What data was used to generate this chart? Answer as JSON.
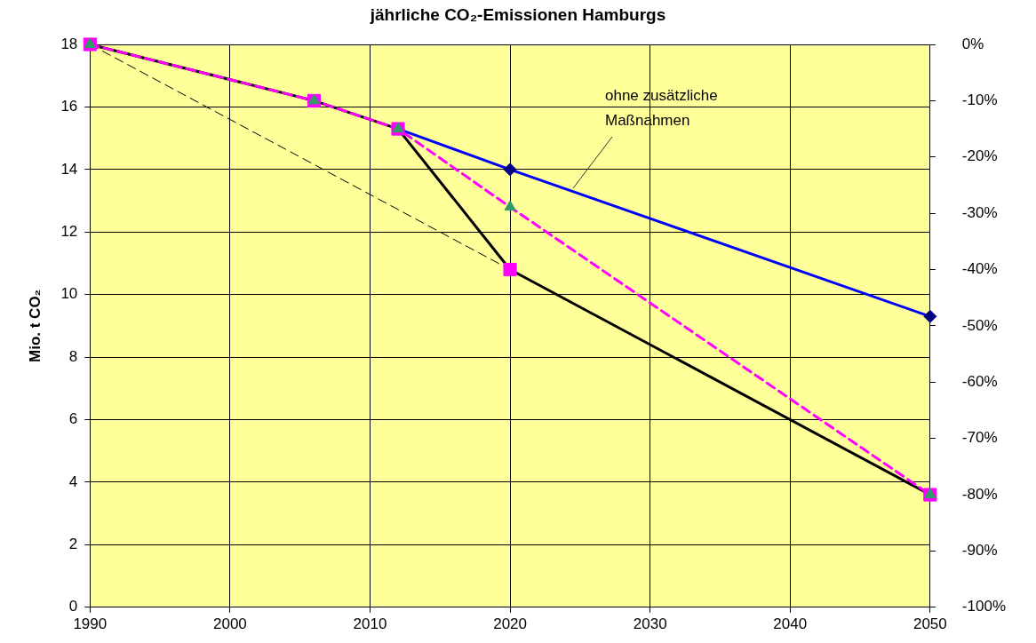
{
  "chart_data": {
    "type": "line",
    "title": "jährliche CO₂-Emissionen Hamburgs",
    "ylabel": "Mio. t CO₂",
    "x": [
      1990,
      2006,
      2012,
      2020,
      2050
    ],
    "series": [
      {
        "color": "#ff00ff",
        "colors": [
          "#339966",
          "#339966",
          "#339966",
          "#339966",
          "#339966"
        ],
        "marker": "triangle",
        "line_style": "dashed",
        "values": [
          18,
          16.2,
          15.3,
          12.8,
          3.6
        ]
      },
      {
        "color": "#000000",
        "colors": [
          "#ff00ff",
          "#ff00ff",
          "#ff00ff",
          "#ff00ff",
          "#ff00ff"
        ],
        "marker": "square",
        "line_style": "solid",
        "values": [
          18,
          16.2,
          15.3,
          10.8,
          3.6
        ]
      },
      {
        "color": "#000000",
        "x": [
          1990,
          2020
        ],
        "marker": "none",
        "line_style": "dashed",
        "values": [
          18,
          10.8
        ]
      },
      {
        "color": "#0000ff",
        "colors": [
          null,
          null,
          "#000080",
          "#000080",
          "#000080"
        ],
        "marker": "diamond",
        "line_style": "solid",
        "values": [
          null,
          null,
          15.3,
          14.0,
          9.3
        ]
      }
    ],
    "xlim": [
      1990,
      2050
    ],
    "xticks": [
      1990,
      2000,
      2010,
      2020,
      2030,
      2040,
      2050
    ],
    "ylim": [
      0,
      18
    ],
    "yticks": [
      0,
      2,
      4,
      6,
      8,
      10,
      12,
      14,
      16,
      18
    ],
    "y2lim": [
      -100,
      0
    ],
    "y2ticks": [
      {
        "value": -100,
        "label": "-100%"
      },
      {
        "value": -90,
        "label": "-90%"
      },
      {
        "value": -80,
        "label": "-80%"
      },
      {
        "value": -70,
        "label": "-70%"
      },
      {
        "value": -60,
        "label": "-60%"
      },
      {
        "value": -50,
        "label": "-50%"
      },
      {
        "value": -40,
        "label": "-40%"
      },
      {
        "value": -30,
        "label": "-30%"
      },
      {
        "value": -20,
        "label": "-20%"
      },
      {
        "value": -10,
        "label": "-10%"
      },
      {
        "value": 0,
        "label": "0%"
      }
    ],
    "annotations": [
      {
        "text": "ohne zusätzliche Maßnahmen",
        "x": 2024.5,
        "y": 13.4
      }
    ],
    "grid": true,
    "legend": false
  }
}
